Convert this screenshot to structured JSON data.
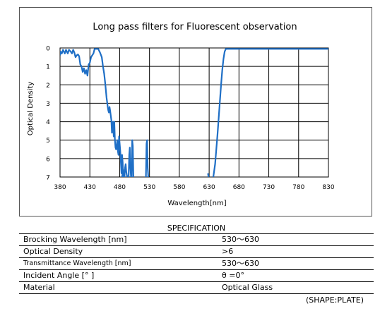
{
  "chart_data": {
    "type": "line",
    "title": "Long pass filters for Fluorescent observation",
    "xlabel": "Wavelength[nm]",
    "ylabel": "Optical Density",
    "xlim": [
      380,
      830
    ],
    "ylim": [
      0,
      7
    ],
    "y_inverted": true,
    "x_ticks": [
      "380",
      "430",
      "480",
      "530",
      "580",
      "630",
      "680",
      "730",
      "780",
      "830"
    ],
    "y_ticks": [
      "0",
      "1",
      "2",
      "3",
      "4",
      "5",
      "6",
      "7"
    ],
    "grid": true,
    "line_color": "#1f6fc6",
    "segments": [
      [
        [
          380,
          0.4
        ],
        [
          381,
          0.2
        ],
        [
          383,
          0.3
        ],
        [
          385,
          0.1
        ],
        [
          388,
          0.3
        ],
        [
          390,
          0.1
        ],
        [
          393,
          0.3
        ],
        [
          395,
          0.1
        ],
        [
          398,
          0.2
        ],
        [
          400,
          0.3
        ],
        [
          402,
          0.1
        ],
        [
          404,
          0.25
        ],
        [
          406,
          0.5
        ],
        [
          408,
          0.4
        ],
        [
          410,
          0.35
        ],
        [
          412,
          0.45
        ],
        [
          414,
          0.9
        ],
        [
          416,
          1.0
        ],
        [
          418,
          1.3
        ],
        [
          420,
          1.1
        ],
        [
          422,
          1.4
        ],
        [
          424,
          1.2
        ],
        [
          426,
          1.5
        ],
        [
          428,
          0.9
        ],
        [
          430,
          0.8
        ],
        [
          432,
          0.5
        ],
        [
          434,
          0.4
        ],
        [
          436,
          0.3
        ],
        [
          438,
          0.05
        ],
        [
          441,
          0.05
        ],
        [
          444,
          0.05
        ],
        [
          447,
          0.25
        ],
        [
          450,
          0.5
        ],
        [
          452,
          1.0
        ],
        [
          454,
          1.4
        ],
        [
          456,
          2.0
        ],
        [
          458,
          2.7
        ],
        [
          460,
          3.2
        ],
        [
          461,
          3.4
        ],
        [
          462,
          3.5
        ],
        [
          463,
          3.2
        ],
        [
          464,
          3.4
        ],
        [
          466,
          3.9
        ],
        [
          467,
          4.6
        ],
        [
          468,
          4.2
        ],
        [
          469,
          4.0
        ],
        [
          470,
          4.8
        ],
        [
          471,
          4.0
        ],
        [
          472,
          5.0
        ],
        [
          473,
          5.4
        ],
        [
          474,
          5.5
        ],
        [
          475,
          5.3
        ],
        [
          476,
          5.0
        ],
        [
          477,
          5.6
        ],
        [
          478,
          5.8
        ],
        [
          479,
          4.8
        ],
        [
          480,
          5.2
        ],
        [
          481,
          5.6
        ],
        [
          482,
          6.2
        ],
        [
          483,
          6.8
        ],
        [
          484,
          5.8
        ],
        [
          485,
          6.2
        ],
        [
          486,
          7.0
        ]
      ],
      [
        [
          484,
          7.0
        ],
        [
          486,
          6.6
        ],
        [
          488,
          7.0
        ]
      ],
      [
        [
          488,
          7.0
        ],
        [
          489,
          6.5
        ],
        [
          490,
          6.3
        ],
        [
          491,
          6.7
        ],
        [
          492,
          6.9
        ],
        [
          493,
          7.0
        ]
      ],
      [
        [
          495,
          7.0
        ],
        [
          496,
          5.8
        ],
        [
          497,
          5.4
        ],
        [
          498,
          6.5
        ],
        [
          499,
          7.0
        ]
      ],
      [
        [
          500,
          7.0
        ],
        [
          501,
          5.0
        ],
        [
          502,
          5.3
        ],
        [
          503,
          7.0
        ]
      ],
      [
        [
          524,
          7.0
        ],
        [
          525,
          5.2
        ],
        [
          526,
          5.0
        ],
        [
          527,
          6.5
        ],
        [
          528,
          7.0
        ]
      ],
      [
        [
          628,
          6.8
        ],
        [
          629,
          7.0
        ]
      ],
      [
        [
          637,
          7.0
        ],
        [
          640,
          6.3
        ],
        [
          642,
          5.5
        ],
        [
          644,
          4.7
        ],
        [
          646,
          3.8
        ],
        [
          648,
          2.9
        ],
        [
          650,
          2.0
        ],
        [
          652,
          1.2
        ],
        [
          654,
          0.6
        ],
        [
          656,
          0.2
        ],
        [
          658,
          0.05
        ],
        [
          662,
          0.05
        ],
        [
          700,
          0.05
        ],
        [
          760,
          0.05
        ],
        [
          830,
          0.05
        ]
      ]
    ]
  },
  "spec": {
    "title": "SPECIFICATION",
    "rows": [
      {
        "label": "Brocking Wavelength  [nm]",
        "value": "530〜630"
      },
      {
        "label": "Optical Density",
        "value": ">6"
      },
      {
        "label": "Transmittance  Wavelength  [nm]",
        "value": "530〜630"
      },
      {
        "label": "Incident Angle  [° ]",
        "value": "θ =0°"
      },
      {
        "label": "Material",
        "value": "Optical Glass"
      }
    ],
    "note": "(SHAPE:PLATE)"
  }
}
